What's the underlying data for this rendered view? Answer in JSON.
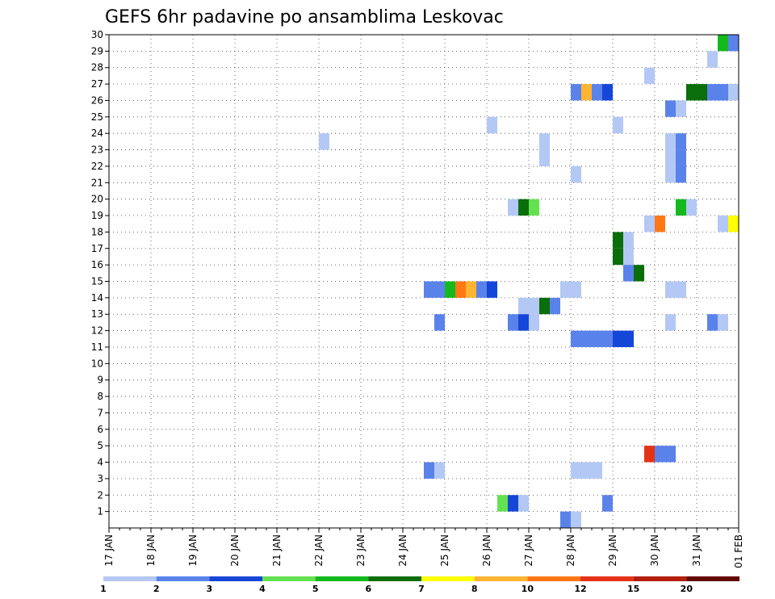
{
  "chart_data": {
    "type": "heatmap",
    "title": "GEFS 6hr padavine po ansamblima Leskovac",
    "xlabel": "",
    "ylabel": "",
    "x_ticks": [
      "17 JAN",
      "18 JAN",
      "19 JAN",
      "20 JAN",
      "21 JAN",
      "22 JAN",
      "23 JAN",
      "24 JAN",
      "25 JAN",
      "26 JAN",
      "27 JAN",
      "28 JAN",
      "29 JAN",
      "30 JAN",
      "31 JAN",
      "01 FEB"
    ],
    "x_range_days": [
      0,
      15
    ],
    "y_ticks": [
      "1",
      "2",
      "3",
      "4",
      "5",
      "6",
      "7",
      "8",
      "9",
      "10",
      "11",
      "12",
      "13",
      "14",
      "15",
      "16",
      "17",
      "18",
      "19",
      "20",
      "21",
      "22",
      "23",
      "24",
      "25",
      "26",
      "27",
      "28",
      "29",
      "30"
    ],
    "y_range": [
      0,
      30
    ],
    "grid": true,
    "legend": {
      "placement": "bottom",
      "levels": [
        "1",
        "2",
        "3",
        "4",
        "5",
        "6",
        "7",
        "8",
        "10",
        "12",
        "15",
        "20"
      ],
      "colors": [
        "#b4c8f5",
        "#5a82eb",
        "#1446d7",
        "#64e150",
        "#14b91e",
        "#0a6e0a",
        "#ffff00",
        "#ffb432",
        "#ff7814",
        "#e63214",
        "#b41e0a",
        "#640505"
      ]
    },
    "cells_note_units": "x = days after 17 JAN 00z (0.25 = 6 hours), y = ensemble member, c = color class index",
    "cells": [
      {
        "x": 14.5,
        "y": 30,
        "c": 4
      },
      {
        "x": 14.75,
        "y": 30,
        "c": 1
      },
      {
        "x": 14.25,
        "y": 29,
        "c": 0
      },
      {
        "x": 12.75,
        "y": 28,
        "c": 0
      },
      {
        "x": 11,
        "y": 27,
        "c": 1
      },
      {
        "x": 11.25,
        "y": 27,
        "c": 7
      },
      {
        "x": 11.5,
        "y": 27,
        "c": 1
      },
      {
        "x": 11.75,
        "y": 27,
        "c": 2
      },
      {
        "x": 13.75,
        "y": 27,
        "c": 5
      },
      {
        "x": 14,
        "y": 27,
        "c": 5
      },
      {
        "x": 14.25,
        "y": 27,
        "c": 1
      },
      {
        "x": 14.5,
        "y": 27,
        "c": 1
      },
      {
        "x": 14.75,
        "y": 27,
        "c": 0
      },
      {
        "x": 13.25,
        "y": 26,
        "c": 1
      },
      {
        "x": 13.5,
        "y": 26,
        "c": 0
      },
      {
        "x": 9,
        "y": 25,
        "c": 0
      },
      {
        "x": 12,
        "y": 25,
        "c": 0
      },
      {
        "x": 5,
        "y": 24,
        "c": 0
      },
      {
        "x": 10.25,
        "y": 24,
        "c": 0
      },
      {
        "x": 13.25,
        "y": 24,
        "c": 0
      },
      {
        "x": 13.5,
        "y": 24,
        "c": 1
      },
      {
        "x": 10.25,
        "y": 23,
        "c": 0
      },
      {
        "x": 13.25,
        "y": 23,
        "c": 0
      },
      {
        "x": 13.5,
        "y": 23,
        "c": 1
      },
      {
        "x": 11,
        "y": 22,
        "c": 0
      },
      {
        "x": 13.25,
        "y": 22,
        "c": 0
      },
      {
        "x": 13.5,
        "y": 22,
        "c": 1
      },
      {
        "x": 9.5,
        "y": 20,
        "c": 0
      },
      {
        "x": 9.75,
        "y": 20,
        "c": 5
      },
      {
        "x": 10,
        "y": 20,
        "c": 3
      },
      {
        "x": 13.5,
        "y": 20,
        "c": 4
      },
      {
        "x": 13.75,
        "y": 20,
        "c": 0
      },
      {
        "x": 12.75,
        "y": 19,
        "c": 0
      },
      {
        "x": 13,
        "y": 19,
        "c": 8
      },
      {
        "x": 14.5,
        "y": 19,
        "c": 0
      },
      {
        "x": 14.75,
        "y": 19,
        "c": 6
      },
      {
        "x": 12,
        "y": 18,
        "c": 5
      },
      {
        "x": 12.25,
        "y": 18,
        "c": 0
      },
      {
        "x": 12,
        "y": 17,
        "c": 5
      },
      {
        "x": 12.25,
        "y": 17,
        "c": 0
      },
      {
        "x": 12.25,
        "y": 16,
        "c": 1
      },
      {
        "x": 12.5,
        "y": 16,
        "c": 5
      },
      {
        "x": 7.5,
        "y": 15,
        "c": 1
      },
      {
        "x": 7.75,
        "y": 15,
        "c": 1
      },
      {
        "x": 8,
        "y": 15,
        "c": 4
      },
      {
        "x": 8.25,
        "y": 15,
        "c": 8
      },
      {
        "x": 8.5,
        "y": 15,
        "c": 7
      },
      {
        "x": 8.75,
        "y": 15,
        "c": 1
      },
      {
        "x": 9,
        "y": 15,
        "c": 2
      },
      {
        "x": 10.75,
        "y": 15,
        "c": 0
      },
      {
        "x": 11,
        "y": 15,
        "c": 0
      },
      {
        "x": 13.25,
        "y": 15,
        "c": 0
      },
      {
        "x": 13.5,
        "y": 15,
        "c": 0
      },
      {
        "x": 9.75,
        "y": 14,
        "c": 0
      },
      {
        "x": 10,
        "y": 14,
        "c": 0
      },
      {
        "x": 10.25,
        "y": 14,
        "c": 5
      },
      {
        "x": 10.5,
        "y": 14,
        "c": 1
      },
      {
        "x": 7.75,
        "y": 13,
        "c": 1
      },
      {
        "x": 9.5,
        "y": 13,
        "c": 1
      },
      {
        "x": 9.75,
        "y": 13,
        "c": 2
      },
      {
        "x": 10,
        "y": 13,
        "c": 0
      },
      {
        "x": 13.25,
        "y": 13,
        "c": 0
      },
      {
        "x": 14.25,
        "y": 13,
        "c": 1
      },
      {
        "x": 14.5,
        "y": 13,
        "c": 0
      },
      {
        "x": 11,
        "y": 12,
        "c": 1
      },
      {
        "x": 11.25,
        "y": 12,
        "c": 1
      },
      {
        "x": 11.5,
        "y": 12,
        "c": 1
      },
      {
        "x": 11.75,
        "y": 12,
        "c": 1
      },
      {
        "x": 12,
        "y": 12,
        "c": 2
      },
      {
        "x": 12.25,
        "y": 12,
        "c": 2
      },
      {
        "x": 12.75,
        "y": 5,
        "c": 9
      },
      {
        "x": 13,
        "y": 5,
        "c": 1
      },
      {
        "x": 13.25,
        "y": 5,
        "c": 1
      },
      {
        "x": 7.5,
        "y": 4,
        "c": 1
      },
      {
        "x": 7.75,
        "y": 4,
        "c": 0
      },
      {
        "x": 11,
        "y": 4,
        "c": 0
      },
      {
        "x": 11.25,
        "y": 4,
        "c": 0
      },
      {
        "x": 11.5,
        "y": 4,
        "c": 0
      },
      {
        "x": 9.25,
        "y": 2,
        "c": 3
      },
      {
        "x": 9.5,
        "y": 2,
        "c": 2
      },
      {
        "x": 9.75,
        "y": 2,
        "c": 0
      },
      {
        "x": 11.75,
        "y": 2,
        "c": 1
      },
      {
        "x": 10.75,
        "y": 1,
        "c": 1
      },
      {
        "x": 11,
        "y": 1,
        "c": 0
      }
    ]
  }
}
